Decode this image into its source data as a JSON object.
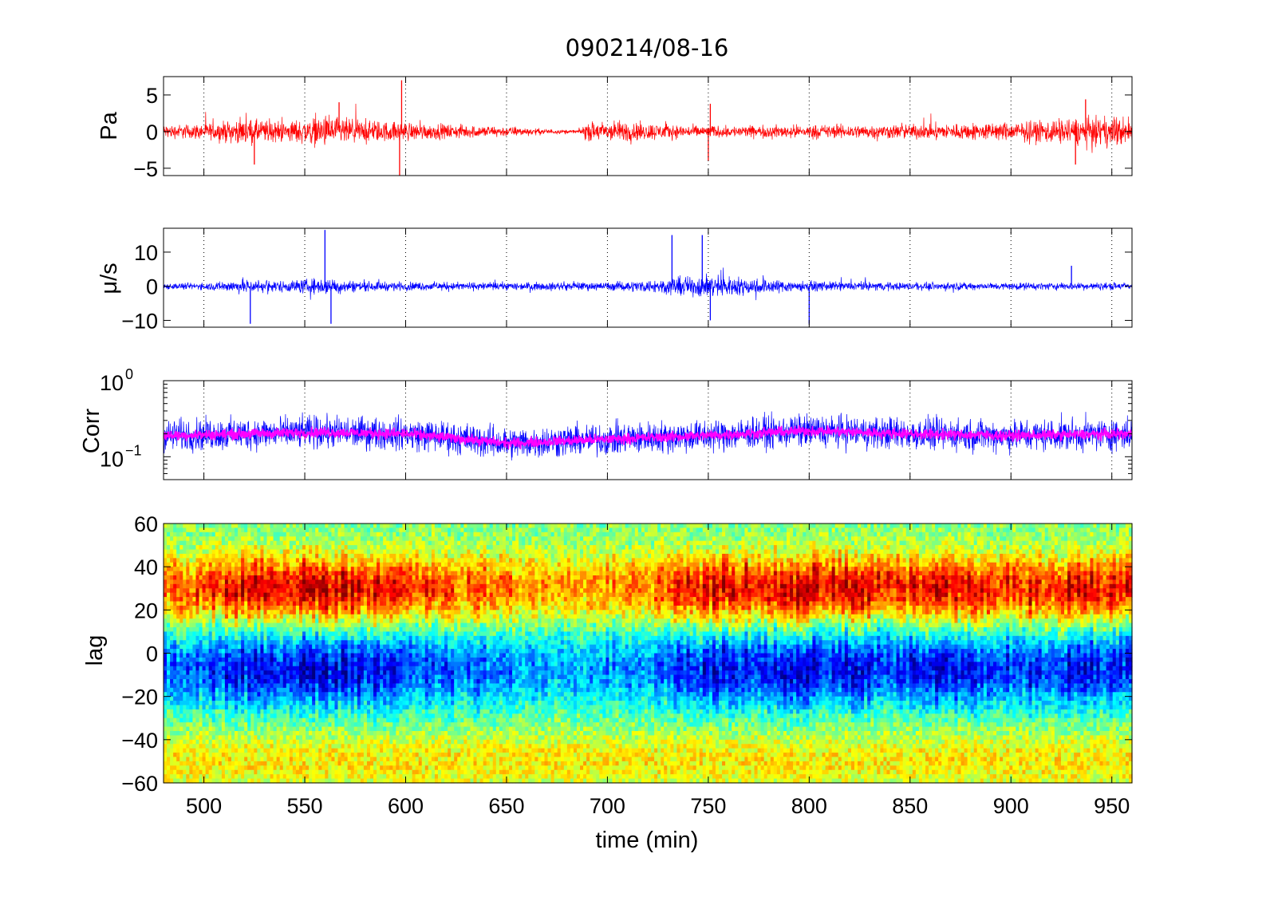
{
  "title": "090214/08-16",
  "xlabel": "time (min)",
  "colors": {
    "pressure": "#ff0000",
    "velocity": "#0000ff",
    "corr_raw": "#0000ff",
    "corr_smooth": "#ff00ff"
  },
  "chart_data": [
    {
      "type": "line",
      "ylabel": "Pa",
      "xlim": [
        480,
        960
      ],
      "ylim": [
        -6,
        7.5
      ],
      "xticks": [
        500,
        550,
        600,
        650,
        700,
        750,
        800,
        850,
        900,
        950
      ],
      "yticks": [
        -5,
        0,
        5
      ],
      "ytick_labels": [
        "−5",
        "0",
        "5"
      ],
      "grid": "vertical-dotted",
      "series_color": "#ff0000",
      "amplitude_envelope": [
        [
          480,
          1.3
        ],
        [
          500,
          1.5
        ],
        [
          520,
          2.4
        ],
        [
          540,
          2.0
        ],
        [
          560,
          3.0
        ],
        [
          580,
          2.2
        ],
        [
          600,
          1.8
        ],
        [
          620,
          1.4
        ],
        [
          650,
          1.0
        ],
        [
          670,
          0.5
        ],
        [
          685,
          0.3
        ],
        [
          690,
          1.8
        ],
        [
          705,
          2.1
        ],
        [
          720,
          1.7
        ],
        [
          740,
          1.2
        ],
        [
          760,
          1.1
        ],
        [
          800,
          1.3
        ],
        [
          850,
          1.4
        ],
        [
          900,
          1.8
        ],
        [
          930,
          2.6
        ],
        [
          960,
          3.0
        ]
      ],
      "spikes": [
        [
          525,
          -4.5
        ],
        [
          567,
          4.0
        ],
        [
          597,
          -6.0
        ],
        [
          598,
          7.0
        ],
        [
          750,
          -4.0
        ],
        [
          751,
          3.8
        ],
        [
          932,
          -4.5
        ],
        [
          937,
          4.4
        ]
      ]
    },
    {
      "type": "line",
      "ylabel": "μ/s",
      "xlim": [
        480,
        960
      ],
      "ylim": [
        -12,
        17
      ],
      "xticks": [
        500,
        550,
        600,
        650,
        700,
        750,
        800,
        850,
        900,
        950
      ],
      "yticks": [
        -10,
        0,
        10
      ],
      "ytick_labels": [
        "−10",
        "0",
        "10"
      ],
      "grid": "vertical-dotted",
      "series_color": "#0000ff",
      "amplitude_envelope": [
        [
          480,
          1.3
        ],
        [
          500,
          1.4
        ],
        [
          520,
          3.0
        ],
        [
          540,
          2.4
        ],
        [
          560,
          3.6
        ],
        [
          580,
          2.0
        ],
        [
          600,
          1.8
        ],
        [
          650,
          1.6
        ],
        [
          700,
          1.7
        ],
        [
          720,
          2.6
        ],
        [
          740,
          4.2
        ],
        [
          750,
          4.8
        ],
        [
          770,
          3.6
        ],
        [
          800,
          2.0
        ],
        [
          850,
          1.6
        ],
        [
          900,
          1.5
        ],
        [
          960,
          1.6
        ]
      ],
      "spikes": [
        [
          523,
          -11
        ],
        [
          560,
          16.5
        ],
        [
          563,
          -11
        ],
        [
          732,
          15
        ],
        [
          747,
          15
        ],
        [
          751,
          -10
        ],
        [
          800,
          -11
        ],
        [
          930,
          6
        ]
      ]
    },
    {
      "type": "line",
      "ylabel": "Corr",
      "yscale": "log",
      "xlim": [
        480,
        960
      ],
      "ylim": [
        0.05,
        1
      ],
      "xticks": [
        500,
        550,
        600,
        650,
        700,
        750,
        800,
        850,
        900,
        950
      ],
      "yticks": [
        0.1,
        1
      ],
      "ytick_base": "10",
      "ytick_exponents": [
        "−1",
        "0"
      ],
      "grid": "vertical-dotted",
      "series": [
        {
          "color": "#0000ff",
          "center": [
            [
              480,
              0.19
            ],
            [
              520,
              0.2
            ],
            [
              560,
              0.21
            ],
            [
              600,
              0.2
            ],
            [
              650,
              0.15
            ],
            [
              700,
              0.17
            ],
            [
              750,
              0.19
            ],
            [
              800,
              0.22
            ],
            [
              850,
              0.2
            ],
            [
              900,
              0.19
            ],
            [
              960,
              0.2
            ]
          ],
          "spread_log10": 0.22
        },
        {
          "color": "#ff00ff",
          "center": [
            [
              480,
              0.19
            ],
            [
              520,
              0.2
            ],
            [
              560,
              0.21
            ],
            [
              600,
              0.2
            ],
            [
              650,
              0.15
            ],
            [
              700,
              0.17
            ],
            [
              750,
              0.19
            ],
            [
              800,
              0.22
            ],
            [
              850,
              0.2
            ],
            [
              900,
              0.19
            ],
            [
              960,
              0.2
            ]
          ],
          "spread_log10": 0.07
        }
      ]
    },
    {
      "type": "heatmap",
      "ylabel": "lag",
      "colormap": "jet",
      "xlim": [
        480,
        960
      ],
      "ylim": [
        -60,
        60
      ],
      "xticks": [
        500,
        550,
        600,
        650,
        700,
        750,
        800,
        850,
        900,
        950
      ],
      "yticks": [
        -60,
        -40,
        -20,
        0,
        20,
        40,
        60
      ],
      "ytick_labels": [
        "−60",
        "−40",
        "−20",
        "0",
        "20",
        "40",
        "60"
      ],
      "xtick_labels": [
        "500",
        "550",
        "600",
        "650",
        "700",
        "750",
        "800",
        "850",
        "900",
        "950"
      ],
      "value_range": [
        -1,
        1
      ],
      "positive_band_lag": [
        15,
        45
      ],
      "negative_band_lag": [
        -25,
        10
      ],
      "band_strength_by_time": [
        [
          480,
          0.55
        ],
        [
          520,
          0.8
        ],
        [
          560,
          0.85
        ],
        [
          600,
          0.7
        ],
        [
          640,
          0.55
        ],
        [
          680,
          0.45
        ],
        [
          720,
          0.5
        ],
        [
          750,
          0.8
        ],
        [
          800,
          0.85
        ],
        [
          850,
          0.75
        ],
        [
          900,
          0.7
        ],
        [
          940,
          0.85
        ],
        [
          960,
          0.75
        ]
      ]
    }
  ]
}
